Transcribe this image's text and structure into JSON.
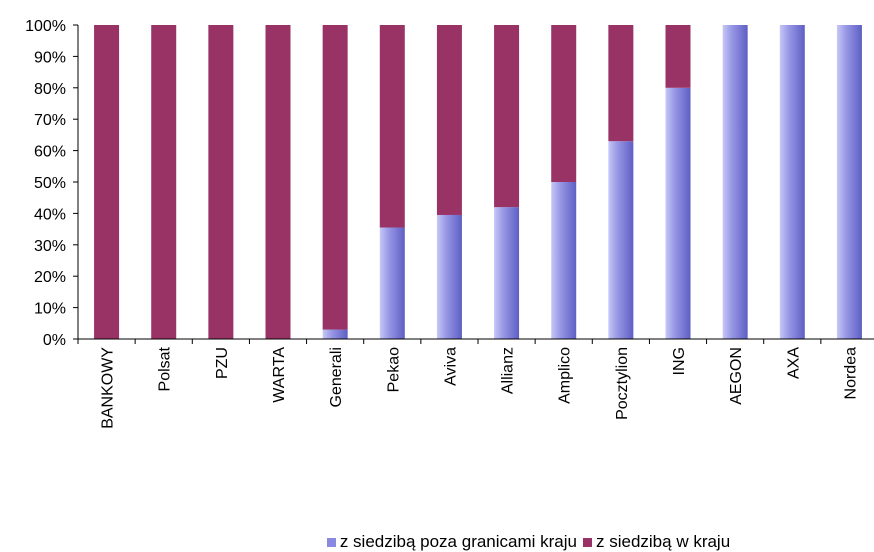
{
  "chart_data": {
    "type": "bar",
    "stacked": true,
    "categories": [
      "BANKOWY",
      "Polsat",
      "PZU",
      "WARTA",
      "Generali",
      "Pekao",
      "Aviva",
      "Allianz",
      "Amplico",
      "Pocztylion",
      "ING",
      "AEGON",
      "AXA",
      "Nordea"
    ],
    "series": [
      {
        "name": "z siedzibą poza granicami kraju",
        "color": "#8a8ae0",
        "values": [
          0,
          0,
          0,
          0,
          3,
          35.5,
          39.5,
          42,
          50,
          63,
          80,
          100,
          100,
          100
        ]
      },
      {
        "name": "z siedzibą w  kraju",
        "color": "#993366",
        "values": [
          100,
          100,
          100,
          100,
          97,
          64.5,
          60.5,
          58,
          50,
          37,
          20,
          0,
          0,
          0
        ]
      }
    ],
    "ylim": [
      0,
      100
    ],
    "yticks": [
      "0%",
      "10%",
      "20%",
      "30%",
      "40%",
      "50%",
      "60%",
      "70%",
      "80%",
      "90%",
      "100%"
    ],
    "grid": false,
    "legend_position": "bottom"
  }
}
